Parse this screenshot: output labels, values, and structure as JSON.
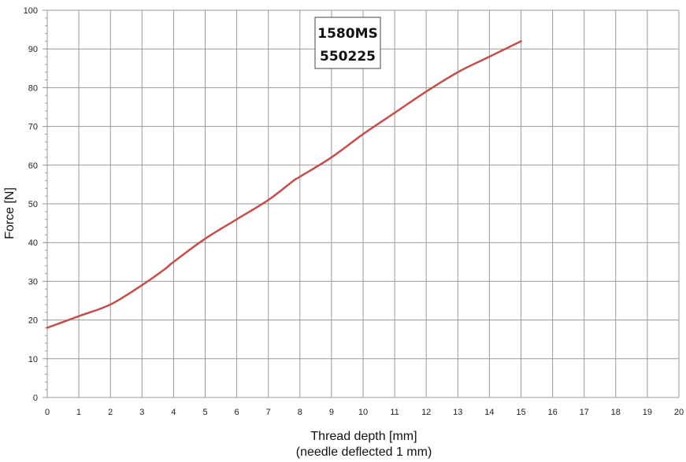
{
  "chart_data": {
    "type": "line",
    "xlabel": "Thread depth [mm]",
    "xlabel_sub": "(needle deflected 1 mm)",
    "ylabel": "Force [N]",
    "xlim": [
      0,
      20
    ],
    "ylim": [
      0,
      100
    ],
    "x_ticks": [
      0,
      1,
      2,
      3,
      4,
      5,
      6,
      7,
      8,
      9,
      10,
      11,
      12,
      13,
      14,
      15,
      16,
      17,
      18,
      19,
      20
    ],
    "y_ticks": [
      0,
      10,
      20,
      30,
      40,
      50,
      60,
      70,
      80,
      90,
      100
    ],
    "grid": true,
    "annotation": {
      "line1": "1580MS",
      "line2": "550225"
    },
    "series": [
      {
        "color": "#c0504d",
        "x": [
          0,
          1,
          2,
          3,
          3.7,
          4,
          5,
          6,
          7,
          7.8,
          8,
          9,
          10,
          11,
          12,
          13,
          14,
          15
        ],
        "y": [
          18,
          21,
          24,
          29,
          33,
          35,
          41,
          46,
          51,
          56,
          57,
          62,
          68,
          73.5,
          79,
          84,
          88,
          92
        ]
      }
    ]
  }
}
